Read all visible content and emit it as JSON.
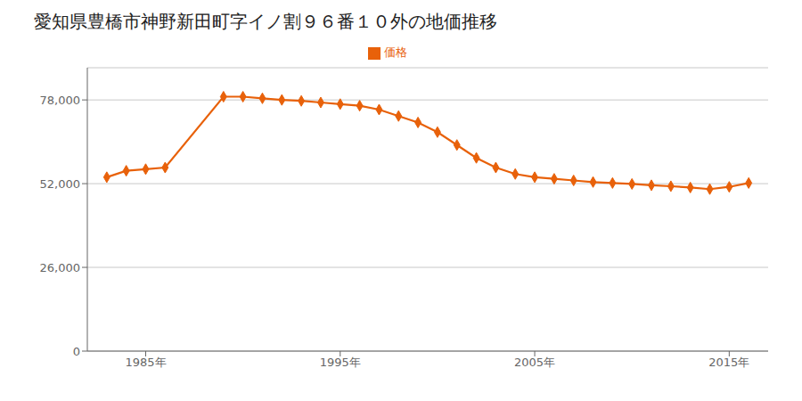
{
  "chart_data": {
    "type": "line",
    "title": "愛知県豊橋市神野新田町字イノ割９６番１０外の地価推移",
    "x": [
      1983,
      1984,
      1985,
      1986,
      1989,
      1990,
      1991,
      1992,
      1993,
      1994,
      1995,
      1996,
      1997,
      1998,
      1999,
      2000,
      2001,
      2002,
      2003,
      2004,
      2005,
      2006,
      2007,
      2008,
      2009,
      2010,
      2011,
      2012,
      2013,
      2014,
      2015,
      2016
    ],
    "series": [
      {
        "name": "価格",
        "color": "#E8610A",
        "marker": "diamond",
        "values": [
          54000,
          56000,
          56500,
          57000,
          79000,
          79000,
          78500,
          78000,
          77700,
          77200,
          76700,
          76200,
          75000,
          73000,
          71000,
          68000,
          64000,
          60000,
          57000,
          55000,
          54000,
          53500,
          53000,
          52500,
          52200,
          51900,
          51500,
          51200,
          50800,
          50300,
          51000,
          52200
        ]
      }
    ],
    "xlim": [
      1982,
      2017
    ],
    "xticks": [
      {
        "value": 1985,
        "label": "1985年"
      },
      {
        "value": 1995,
        "label": "1995年"
      },
      {
        "value": 2005,
        "label": "2005年"
      },
      {
        "value": 2015,
        "label": "2015年"
      }
    ],
    "ylim": [
      0,
      88000
    ],
    "yticks": [
      0,
      {
        "value": 26000,
        "label": "26,000"
      },
      {
        "value": 52000,
        "label": "52,000"
      },
      {
        "value": 78000,
        "label": "78,000"
      }
    ],
    "grid": "y",
    "legend": "top"
  }
}
